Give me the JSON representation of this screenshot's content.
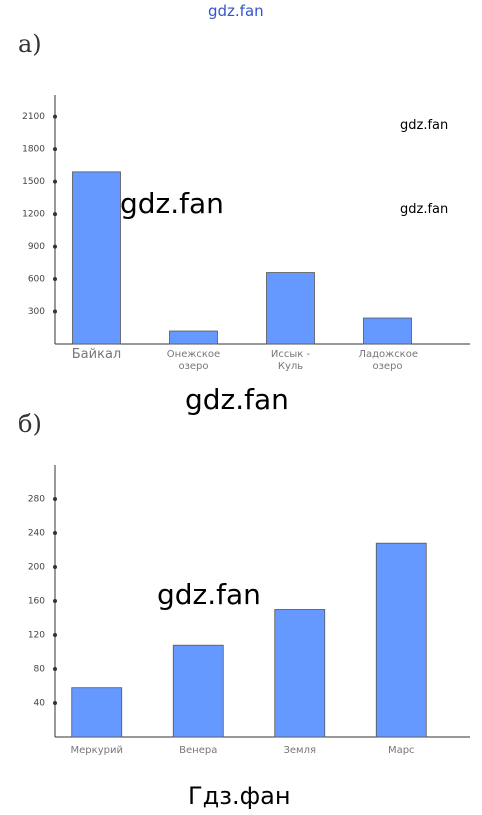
{
  "watermarks": [
    "gdz.fan",
    "gdz.fan",
    "gdz.fan",
    "gdz.fan",
    "gdz.fan",
    "gdz.fan",
    "Гдз.фан"
  ],
  "chart_data": [
    {
      "type": "bar",
      "label": "а)",
      "categories": [
        "Байкал",
        "Онежское озеро",
        "Иссык - Куль",
        "Ладожское озеро"
      ],
      "values": [
        1590,
        120,
        660,
        240
      ],
      "color": "#6699ff",
      "ylim": [
        0,
        2300
      ],
      "yticks": [
        300,
        600,
        900,
        1200,
        1500,
        1800,
        2100
      ]
    },
    {
      "type": "bar",
      "label": "б)",
      "categories": [
        "Меркурий",
        "Венера",
        "Земля",
        "Марс"
      ],
      "values": [
        58,
        108,
        150,
        228
      ],
      "color": "#6699ff",
      "ylim": [
        0,
        320
      ],
      "yticks": [
        40,
        80,
        120,
        160,
        200,
        240,
        280
      ]
    }
  ]
}
